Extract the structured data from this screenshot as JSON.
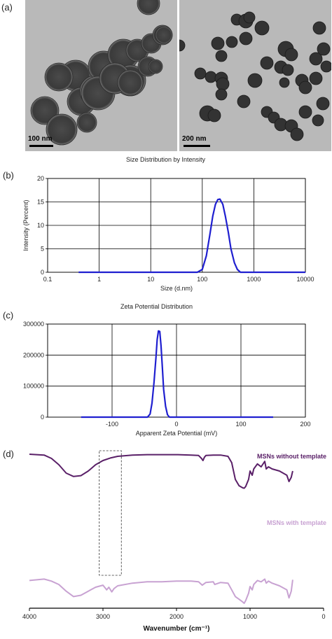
{
  "figure": {
    "panel_a": {
      "letter": "(a)",
      "left_scalebar": "100 nm",
      "right_scalebar": "200 nm"
    },
    "panel_b": {
      "letter": "(b)"
    },
    "panel_c": {
      "letter": "(c)"
    },
    "panel_d": {
      "letter": "(d)"
    }
  },
  "chart_data": [
    {
      "id": "size-distribution",
      "type": "line",
      "title": "Size Distribution by Intensity",
      "xlabel": "Size (d.nm)",
      "ylabel": "Intensity (Percent)",
      "xscale": "log",
      "xlim": [
        0.1,
        10000
      ],
      "ylim": [
        0,
        20
      ],
      "xticks": [
        "0.1",
        "1",
        "10",
        "100",
        "1000",
        "10000"
      ],
      "yticks": [
        "0",
        "5",
        "10",
        "15",
        "20"
      ],
      "grid": true,
      "series_color": "#1f1fd0",
      "series": [
        {
          "x": [
            0.4,
            80,
            100,
            120,
            140,
            160,
            180,
            200,
            220,
            250,
            280,
            320,
            360,
            420,
            480,
            550,
            700,
            10000
          ],
          "y": [
            0,
            0,
            0.6,
            3.5,
            8,
            12,
            14.5,
            15.5,
            15.6,
            14.5,
            12,
            8.5,
            5,
            2,
            0.6,
            0,
            0,
            0
          ]
        }
      ]
    },
    {
      "id": "zeta-potential",
      "type": "line",
      "title": "Zeta Potential Distribution",
      "xlabel": "Apparent Zeta Potential (mV)",
      "ylabel": "",
      "xlim": [
        -200,
        200
      ],
      "ylim": [
        0,
        300000
      ],
      "xticks": [
        "-100",
        "0",
        "100",
        "200"
      ],
      "yticks": [
        "0",
        "100000",
        "200000",
        "300000"
      ],
      "grid": true,
      "series_color": "#1f1fd0",
      "series": [
        {
          "x": [
            -148,
            -45,
            -41,
            -38,
            -35,
            -32,
            -30,
            -28,
            -26,
            -24,
            -22,
            -20,
            -17,
            -14,
            -11,
            150
          ],
          "y": [
            0,
            0,
            10000,
            45000,
            110000,
            190000,
            250000,
            278000,
            276000,
            230000,
            160000,
            90000,
            35000,
            8000,
            0,
            0
          ]
        }
      ]
    },
    {
      "id": "ftir",
      "type": "line",
      "title": "",
      "xlabel": "Wavenumber (cm⁻¹)",
      "ylabel": "",
      "xlim": [
        4000,
        0
      ],
      "xticks": [
        "4000",
        "3000",
        "2000",
        "1000",
        "0"
      ],
      "grid": false,
      "series": [
        {
          "name": "MSNs without template",
          "color": "#5a2068",
          "x": [
            4000,
            3800,
            3700,
            3600,
            3500,
            3400,
            3300,
            3200,
            3100,
            3000,
            2900,
            2800,
            2600,
            2400,
            2200,
            2000,
            1800,
            1700,
            1660,
            1640,
            1620,
            1600,
            1500,
            1400,
            1300,
            1250,
            1200,
            1150,
            1100,
            1080,
            1060,
            1020,
            1000,
            970,
            950,
            900,
            850,
            800,
            780,
            750,
            700,
            600,
            500,
            470,
            440,
            420
          ],
          "y": [
            95,
            93,
            85,
            70,
            50,
            42,
            44,
            55,
            70,
            80,
            86,
            90,
            93,
            94,
            94,
            94,
            93,
            92,
            85,
            80,
            88,
            92,
            93,
            93,
            90,
            75,
            35,
            20,
            15,
            14,
            18,
            35,
            55,
            45,
            60,
            72,
            65,
            78,
            60,
            65,
            60,
            55,
            45,
            30,
            40,
            55
          ]
        },
        {
          "name": "MSNs with template",
          "color": "#c8a2d2",
          "x": [
            4000,
            3800,
            3700,
            3600,
            3500,
            3400,
            3300,
            3200,
            3100,
            3000,
            2950,
            2920,
            2880,
            2850,
            2800,
            2600,
            2400,
            2200,
            2000,
            1800,
            1700,
            1650,
            1600,
            1500,
            1480,
            1400,
            1300,
            1250,
            1200,
            1150,
            1100,
            1080,
            1060,
            1020,
            1000,
            970,
            950,
            900,
            850,
            800,
            780,
            750,
            700,
            600,
            500,
            470,
            440,
            420
          ],
          "y": [
            34,
            36,
            33,
            28,
            18,
            10,
            12,
            18,
            24,
            27,
            20,
            24,
            17,
            22,
            26,
            30,
            32,
            32,
            33,
            33,
            32,
            27,
            31,
            32,
            28,
            31,
            30,
            20,
            10,
            6,
            2,
            0,
            4,
            15,
            25,
            20,
            28,
            34,
            32,
            36,
            30,
            33,
            30,
            26,
            20,
            8,
            18,
            35
          ]
        }
      ]
    }
  ]
}
